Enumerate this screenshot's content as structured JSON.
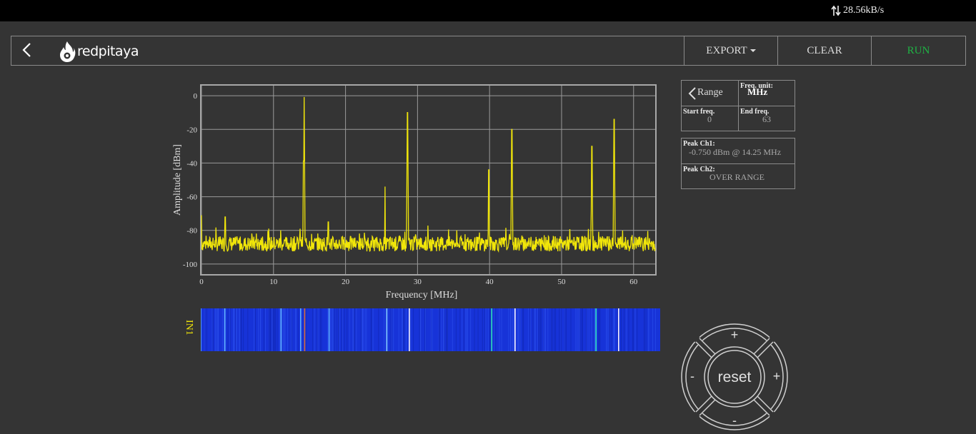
{
  "status": {
    "net_speed": "28.56kB/s"
  },
  "navbar": {
    "logo_text": "redpitaya",
    "export_label": "EXPORT",
    "clear_label": "CLEAR",
    "run_label": "RUN",
    "run_color": "#1fb344"
  },
  "range_panel": {
    "range_label": "Range",
    "freq_unit_label": "Freq. unit:",
    "freq_unit_value": "MHz",
    "start_label": "Start freq.",
    "start_value": "0",
    "end_label": "End freq.",
    "end_value": "63"
  },
  "peak_panel": {
    "ch1_label": "Peak Ch1:",
    "ch1_value": "-0.750 dBm @ 14.25 MHz",
    "ch2_label": "Peak Ch2:",
    "ch2_value": "OVER RANGE"
  },
  "joystick": {
    "center_label": "reset",
    "up_label": "+",
    "down_label": "-",
    "left_label": "-",
    "right_label": "+"
  },
  "waterfall": {
    "label": "IN1"
  },
  "chart_data": {
    "type": "line",
    "xlabel": "Frequency [MHz]",
    "ylabel": "Amplitude [dBm]",
    "xlim": [
      0,
      63
    ],
    "ylim": [
      -106,
      6
    ],
    "x_ticks": [
      0,
      10,
      20,
      30,
      40,
      50,
      60
    ],
    "y_ticks": [
      0,
      -20,
      -40,
      -60,
      -80,
      -100
    ],
    "grid": true,
    "line_color": "#f0e50a",
    "noise_floor": -88,
    "peaks": [
      {
        "x": 0.0,
        "y": -71
      },
      {
        "x": 3.3,
        "y": -72
      },
      {
        "x": 11.0,
        "y": -80
      },
      {
        "x": 13.7,
        "y": -79
      },
      {
        "x": 14.25,
        "y": -0.75
      },
      {
        "x": 17.6,
        "y": -75
      },
      {
        "x": 25.5,
        "y": -54
      },
      {
        "x": 28.6,
        "y": -10
      },
      {
        "x": 39.9,
        "y": -44
      },
      {
        "x": 43.1,
        "y": -20
      },
      {
        "x": 54.2,
        "y": -30
      },
      {
        "x": 57.3,
        "y": -14
      }
    ]
  }
}
